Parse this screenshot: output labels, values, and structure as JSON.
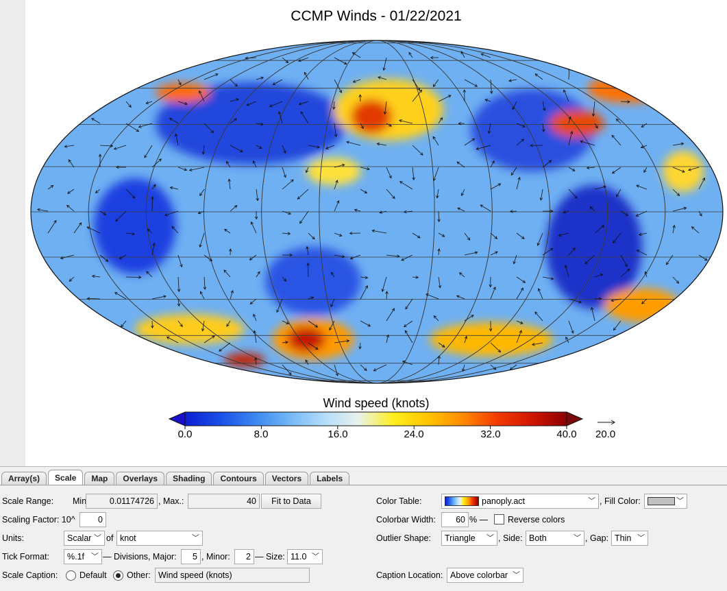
{
  "plot": {
    "title": "CCMP Winds - 01/22/2021",
    "colorbar_title": "Wind speed (knots)",
    "colorbar_ticks": [
      "0.0",
      "8.0",
      "16.0",
      "24.0",
      "32.0",
      "40.0"
    ],
    "reference_vector_label": "20.0"
  },
  "chart_data": {
    "type": "heatmap",
    "projection": "Mollweide",
    "title": "CCMP Winds - 01/22/2021",
    "colorbar": {
      "label": "Wind speed (knots)",
      "min": 0,
      "max": 40,
      "ticks": [
        0,
        8,
        16,
        24,
        32,
        40
      ],
      "colormap": "panoply",
      "colors": [
        "#0c1fd2",
        "#1b4ee8",
        "#3b86f0",
        "#72b6f6",
        "#b3dcfb",
        "#e8f2ec",
        "#ffef1f",
        "#ffc400",
        "#ff8a00",
        "#f43a00",
        "#d11600",
        "#8c0000"
      ],
      "outliers": "Triangle both ends",
      "underflow_color": "#1a10c8",
      "overflow_color": "#7a0a0a"
    },
    "reference_vector": 20.0
  },
  "tabs": [
    {
      "label": "Array(s)",
      "active": false
    },
    {
      "label": "Scale",
      "active": true
    },
    {
      "label": "Map",
      "active": false
    },
    {
      "label": "Overlays",
      "active": false
    },
    {
      "label": "Shading",
      "active": false
    },
    {
      "label": "Contours",
      "active": false
    },
    {
      "label": "Vectors",
      "active": false
    },
    {
      "label": "Labels",
      "active": false
    }
  ],
  "scale": {
    "range_label": "Scale Range:",
    "min_label": "Min.:",
    "min_value": "0.01174726",
    "max_label": ", Max.:",
    "max_value": "40",
    "fit_button": "Fit to Data",
    "factor_label": "Scaling Factor: 10^",
    "factor_value": "0",
    "units_label": "Units:",
    "units_type": "Scalar",
    "of_label": "of",
    "units_value": "knot",
    "tick_format_label": "Tick Format:",
    "tick_format_value": "%.1f",
    "divisions_label": "— Divisions, Major:",
    "major_value": "5",
    "minor_label": ", Minor:",
    "minor_value": "2",
    "size_label": "— Size:",
    "size_value": "11.0",
    "caption_label": "Scale Caption:",
    "caption_default": "Default",
    "caption_other": "Other:",
    "caption_value": "Wind speed (knots)",
    "color_table_label": "Color Table:",
    "color_table_value": "panoply.act",
    "fill_color_label": ", Fill Color:",
    "fill_color": "#c0c0c0",
    "colorbar_width_label": "Colorbar Width:",
    "colorbar_width_value": "60",
    "percent_label": "% —",
    "reverse_label": "Reverse colors",
    "outlier_label": "Outlier Shape:",
    "outlier_value": "Triangle",
    "side_label": ", Side:",
    "side_value": "Both",
    "gap_label": ", Gap:",
    "gap_value": "Thin",
    "caption_location_label": "Caption Location:",
    "caption_location_value": "Above colorbar"
  }
}
